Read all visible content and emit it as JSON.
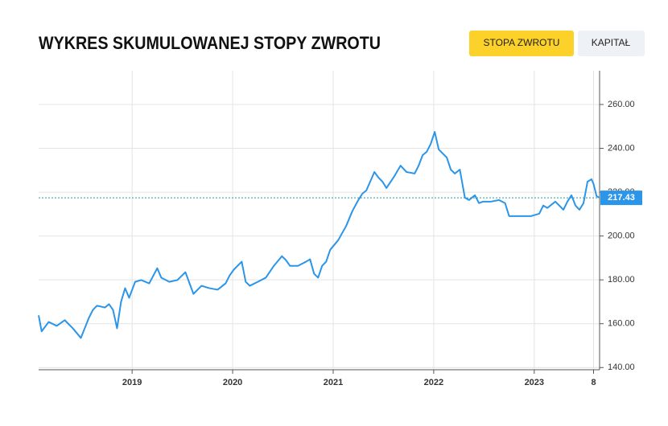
{
  "header": {
    "title": "WYKRES SKUMULOWANEJ STOPY ZWROTU",
    "buttons": [
      "STOPA ZWROTU",
      "KAPITAŁ"
    ]
  },
  "chart_data": {
    "type": "line",
    "xlim": [
      2018.07,
      2023.65
    ],
    "xticks": [
      2019,
      2020,
      2021,
      2022,
      2023,
      {
        "value": 2023.59,
        "label": "8"
      }
    ],
    "ylim": [
      139,
      275.4
    ],
    "yticks": [
      {
        "value": 140,
        "label": "140.00"
      },
      {
        "value": 160,
        "label": "160.00"
      },
      {
        "value": 180,
        "label": "180.00"
      },
      {
        "value": 200,
        "label": "200.00"
      },
      {
        "value": 220,
        "label": "220.00"
      },
      {
        "value": 240,
        "label": "240.00"
      },
      {
        "value": 260,
        "label": "260.00"
      }
    ],
    "grid": true,
    "series": [
      {
        "color": "#2b95e9",
        "x": [
          2018.07,
          2018.1,
          2018.17,
          2018.25,
          2018.33,
          2018.41,
          2018.49,
          2018.57,
          2018.61,
          2018.65,
          2018.73,
          2018.77,
          2018.81,
          2018.85,
          2018.89,
          2018.93,
          2018.97,
          2019.03,
          2019.09,
          2019.17,
          2019.25,
          2019.29,
          2019.37,
          2019.45,
          2019.53,
          2019.61,
          2019.69,
          2019.77,
          2019.85,
          2019.93,
          2019.97,
          2020.01,
          2020.09,
          2020.13,
          2020.17,
          2020.25,
          2020.33,
          2020.41,
          2020.49,
          2020.53,
          2020.57,
          2020.65,
          2020.73,
          2020.77,
          2020.81,
          2020.85,
          2020.89,
          2020.93,
          2020.97,
          2021.05,
          2021.13,
          2021.19,
          2021.25,
          2021.29,
          2021.33,
          2021.41,
          2021.45,
          2021.49,
          2021.53,
          2021.61,
          2021.67,
          2021.73,
          2021.81,
          2021.85,
          2021.89,
          2021.93,
          2021.97,
          2022.01,
          2022.05,
          2022.13,
          2022.17,
          2022.21,
          2022.26,
          2022.31,
          2022.35,
          2022.41,
          2022.45,
          2022.49,
          2022.57,
          2022.65,
          2022.71,
          2022.75,
          2022.81,
          2022.89,
          2022.97,
          2023.05,
          2023.09,
          2023.13,
          2023.21,
          2023.29,
          2023.33,
          2023.37,
          2023.41,
          2023.45,
          2023.49,
          2023.53,
          2023.57,
          2023.59,
          2023.62,
          2023.65
        ],
        "values": [
          163.8,
          156.5,
          160.8,
          159.0,
          161.6,
          157.9,
          153.5,
          162.7,
          166.3,
          168.2,
          167.4,
          168.9,
          166.3,
          157.9,
          170.0,
          176.2,
          171.8,
          179.1,
          179.9,
          178.4,
          185.3,
          181.0,
          179.1,
          179.9,
          183.5,
          173.6,
          177.3,
          176.2,
          175.5,
          178.4,
          182.0,
          184.6,
          188.3,
          179.1,
          177.3,
          179.1,
          181.0,
          186.4,
          190.8,
          189.0,
          186.4,
          186.4,
          188.3,
          189.4,
          182.8,
          181.0,
          186.4,
          188.3,
          193.7,
          198.1,
          204.7,
          211.3,
          216.4,
          219.3,
          220.8,
          229.2,
          226.7,
          224.8,
          221.9,
          227.4,
          232.1,
          229.2,
          228.5,
          232.1,
          236.9,
          238.4,
          242.0,
          247.5,
          239.5,
          235.8,
          230.3,
          228.5,
          230.3,
          217.5,
          216.4,
          218.6,
          215.0,
          215.7,
          215.7,
          216.4,
          215.0,
          209.1,
          209.1,
          209.1,
          209.1,
          210.2,
          213.9,
          212.8,
          215.7,
          212.0,
          215.7,
          218.6,
          213.9,
          212.0,
          215.0,
          224.8,
          225.9,
          223.7,
          218.2,
          217.43
        ]
      }
    ]
  }
}
